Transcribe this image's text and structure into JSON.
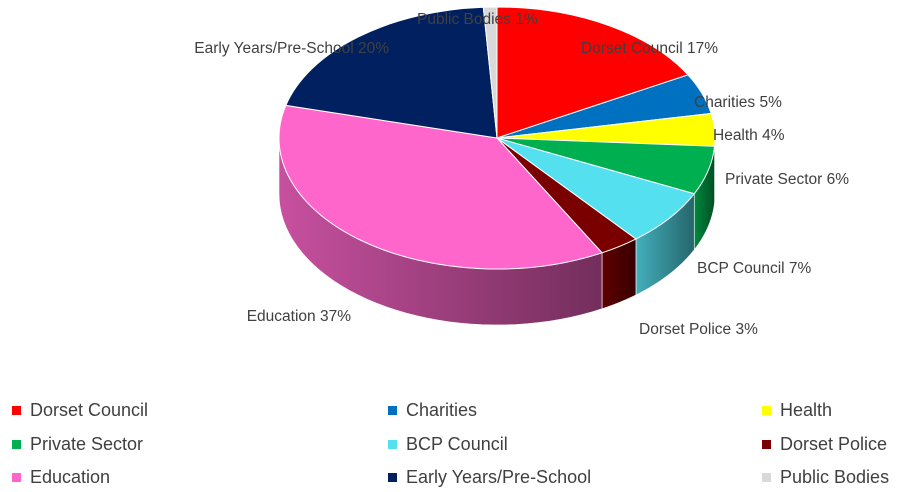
{
  "chart_data": {
    "type": "pie",
    "style": "3d",
    "title": "",
    "legend_position": "bottom",
    "series": [
      {
        "name": "Dorset Council",
        "value": 17,
        "label": "Dorset Council 17%",
        "color": "#ff0000"
      },
      {
        "name": "Charities",
        "value": 5,
        "label": "Charities 5%",
        "color": "#0070c0"
      },
      {
        "name": "Health",
        "value": 4,
        "label": "Health 4%",
        "color": "#ffff00"
      },
      {
        "name": "Private Sector",
        "value": 6,
        "label": "Private Sector 6%",
        "color": "#00b050"
      },
      {
        "name": "BCP Council",
        "value": 7,
        "label": "BCP Council 7%",
        "color": "#55e0f0"
      },
      {
        "name": "Dorset Police",
        "value": 3,
        "label": "Dorset Police 3%",
        "color": "#7a0000"
      },
      {
        "name": "Education",
        "value": 37,
        "label": "Education 37%",
        "color": "#ff66cc"
      },
      {
        "name": "Early Years/Pre-School",
        "value": 20,
        "label": "Early Years/Pre-School 20%",
        "color": "#002060"
      },
      {
        "name": "Public Bodies",
        "value": 1,
        "label": "Public Bodies 1%",
        "color": "#d9d9d9"
      }
    ]
  }
}
